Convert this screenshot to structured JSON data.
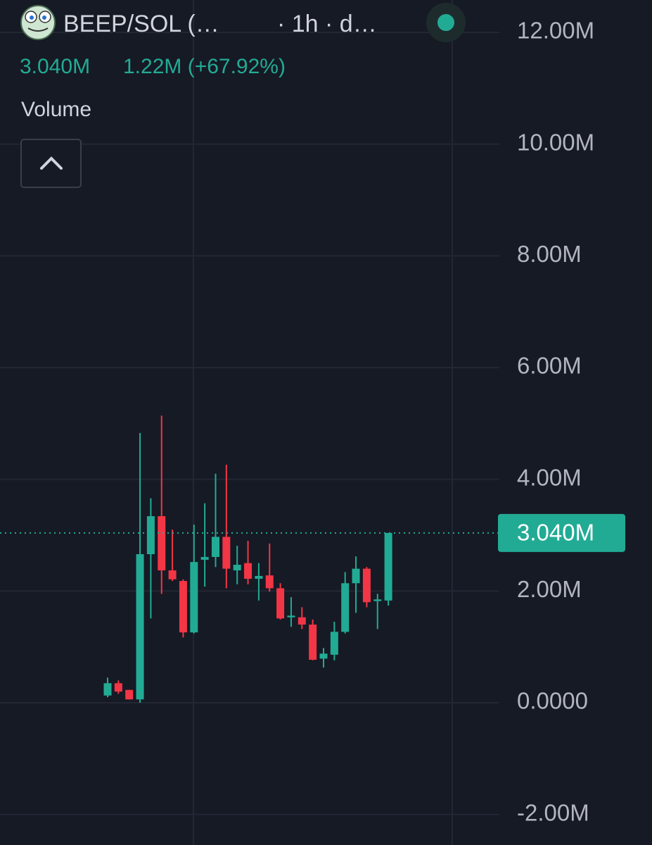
{
  "chart_data": {
    "type": "candlestick",
    "symbol": "BEEP/SOL (…",
    "interval": "· 1h · d…",
    "last": "3.040M",
    "change": "1.22M (+67.92%)",
    "indicator": "Volume",
    "up_color": "#22ab94",
    "down_color": "#f23645",
    "ylim": [
      -2.546,
      12.58
    ],
    "yticks": [
      {
        "value": -2,
        "label": "-2.00M"
      },
      {
        "value": 0,
        "label": "0.0000"
      },
      {
        "value": 2,
        "label": "2.00M"
      },
      {
        "value": 4,
        "label": "4.00M"
      },
      {
        "value": 6,
        "label": "6.00M"
      },
      {
        "value": 8,
        "label": "8.00M"
      },
      {
        "value": 10,
        "label": "10.00M"
      },
      {
        "value": 12,
        "label": "12.00M"
      }
    ],
    "current_price": {
      "value": 3.04,
      "label": "3.040M"
    },
    "open": [
      0.13,
      0.35,
      0.23,
      0.06,
      2.66,
      3.34,
      2.37,
      2.18,
      1.26,
      2.56,
      2.61,
      2.97,
      2.37,
      2.5,
      2.22,
      2.28,
      2.05,
      1.53,
      1.53,
      1.4,
      0.79,
      0.86,
      1.27,
      2.14,
      2.4,
      1.82,
      1.83
    ],
    "high": [
      0.45,
      0.4,
      0.23,
      4.83,
      3.66,
      5.14,
      3.1,
      2.21,
      3.19,
      3.57,
      4.1,
      4.26,
      2.81,
      2.9,
      2.5,
      2.85,
      2.14,
      1.89,
      1.71,
      1.49,
      0.98,
      1.45,
      2.34,
      2.62,
      2.43,
      1.95,
      3.04
    ],
    "low": [
      0.1,
      0.16,
      0.06,
      0.0,
      1.51,
      1.95,
      2.18,
      1.17,
      1.24,
      2.08,
      2.43,
      2.05,
      2.12,
      2.12,
      1.83,
      1.99,
      1.49,
      1.36,
      1.32,
      0.76,
      0.63,
      0.76,
      1.24,
      1.61,
      1.71,
      1.32,
      1.74
    ],
    "close": [
      0.35,
      0.2,
      0.06,
      2.66,
      3.34,
      2.37,
      2.21,
      1.26,
      2.52,
      2.61,
      2.97,
      2.4,
      2.47,
      2.22,
      2.27,
      2.05,
      1.51,
      1.56,
      1.4,
      0.77,
      0.88,
      1.27,
      2.14,
      2.4,
      1.8,
      1.85,
      3.04
    ],
    "grid": true
  }
}
